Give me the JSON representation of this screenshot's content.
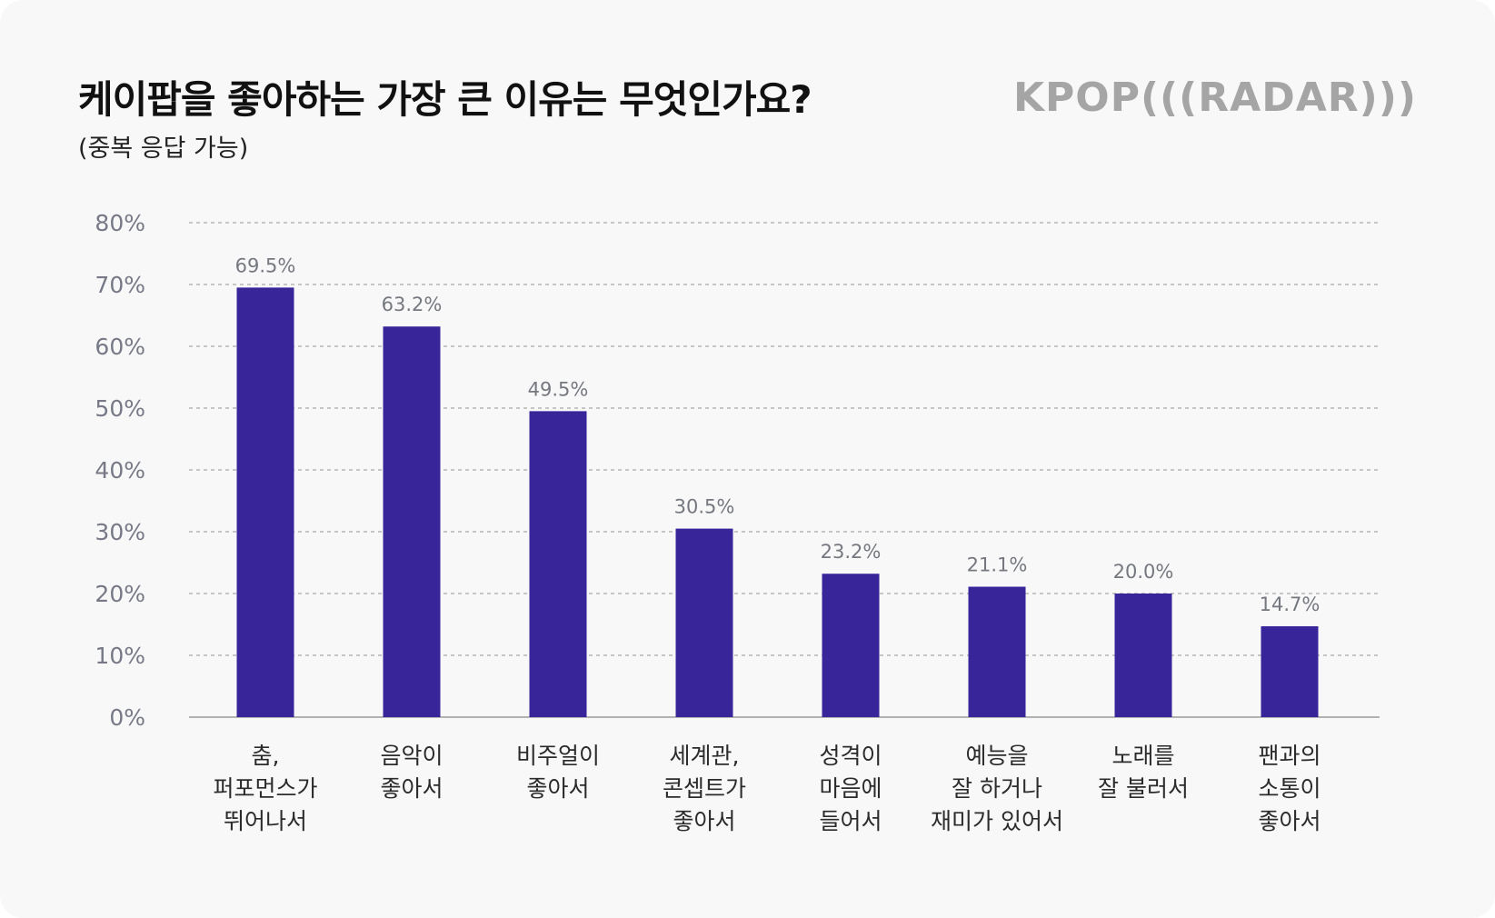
{
  "header": {
    "title": "케이팝을 좋아하는 가장 큰 이유는 무엇인가요?",
    "subtitle": "(중복 응답 가능)",
    "logo": "KPOP(((RADAR)))"
  },
  "colors": {
    "bar": "#38259a",
    "grid": "#a9a9a9",
    "background": "#f8f8f9"
  },
  "chart_data": {
    "type": "bar",
    "title": "케이팝을 좋아하는 가장 큰 이유는 무엇인가요?",
    "subtitle": "(중복 응답 가능)",
    "xlabel": "",
    "ylabel": "",
    "ylim": [
      0,
      80
    ],
    "yticks": [
      0,
      10,
      20,
      30,
      40,
      50,
      60,
      70,
      80
    ],
    "ytick_labels": [
      "0%",
      "10%",
      "20%",
      "30%",
      "40%",
      "50%",
      "60%",
      "70%",
      "80%"
    ],
    "grid": true,
    "categories": [
      [
        "춤,",
        "퍼포먼스가",
        "뛰어나서"
      ],
      [
        "음악이",
        "좋아서"
      ],
      [
        "비주얼이",
        "좋아서"
      ],
      [
        "세계관,",
        "콘셉트가",
        "좋아서"
      ],
      [
        "성격이",
        "마음에",
        "들어서"
      ],
      [
        "예능을",
        "잘 하거나",
        "재미가 있어서"
      ],
      [
        "노래를",
        "잘 불러서"
      ],
      [
        "팬과의",
        "소통이",
        "좋아서"
      ]
    ],
    "values": [
      69.5,
      63.2,
      49.5,
      30.5,
      23.2,
      21.1,
      20.0,
      14.7
    ],
    "value_labels": [
      "69.5%",
      "63.2%",
      "49.5%",
      "30.5%",
      "23.2%",
      "21.1%",
      "20.0%",
      "14.7%"
    ]
  }
}
